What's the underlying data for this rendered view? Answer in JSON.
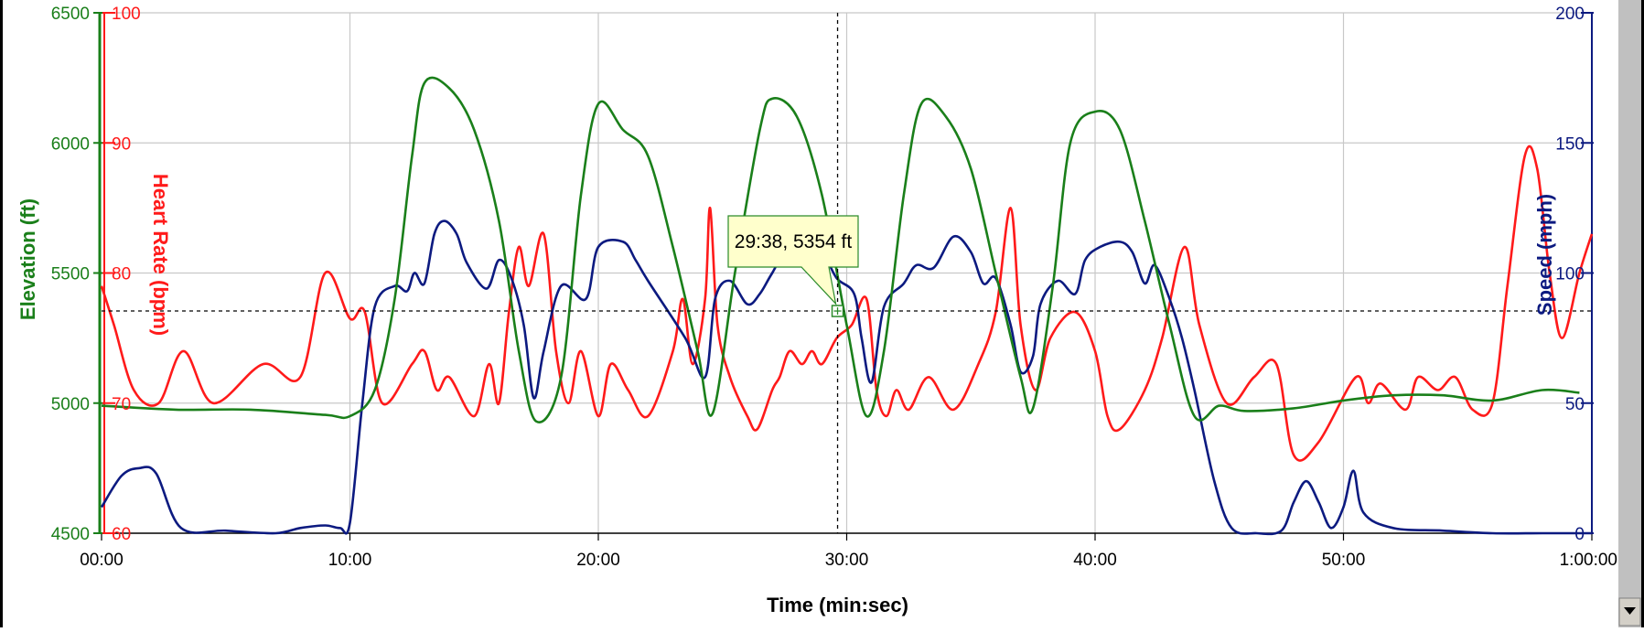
{
  "colors": {
    "elevation": "#1a7f1a",
    "heart_rate": "#ff1a1a",
    "speed": "#0c1a80",
    "grid": "#c8c8c8",
    "axis": "#000000",
    "tooltip_bg": "#ffffcc",
    "window_frame": "#000000",
    "scrollbar": "#c0c0c0"
  },
  "chart_data": {
    "type": "line",
    "xlabel": "Time (min:sec)",
    "x_ticks": [
      "00:00",
      "10:00",
      "20:00",
      "30:00",
      "40:00",
      "50:00",
      "1:00:00"
    ],
    "xlim_minutes": [
      0,
      60
    ],
    "grid": true,
    "y_axes": [
      {
        "id": "elevation",
        "label": "Elevation (ft)",
        "side": "left-outer",
        "range": [
          4500,
          6500
        ],
        "ticks": [
          "4500",
          "5000",
          "5500",
          "6000",
          "6500"
        ]
      },
      {
        "id": "heart_rate",
        "label": "Heart Rate (bpm)",
        "side": "left-inner",
        "range": [
          60,
          100
        ],
        "ticks": [
          "60",
          "70",
          "80",
          "90",
          "100"
        ]
      },
      {
        "id": "speed",
        "label": "Speed (mph)",
        "side": "right",
        "range": [
          0,
          200
        ],
        "ticks": [
          "0",
          "50",
          "100",
          "150",
          "200"
        ]
      }
    ],
    "series": [
      {
        "name": "Elevation (ft)",
        "axis": "elevation",
        "points": [
          [
            0,
            4990
          ],
          [
            3,
            4975
          ],
          [
            6,
            4975
          ],
          [
            9,
            4955
          ],
          [
            10,
            4950
          ],
          [
            11,
            5050
          ],
          [
            11.8,
            5400
          ],
          [
            12.5,
            5950
          ],
          [
            13,
            6230
          ],
          [
            14,
            6210
          ],
          [
            15,
            6050
          ],
          [
            16,
            5700
          ],
          [
            16.8,
            5200
          ],
          [
            17.5,
            4930
          ],
          [
            18.5,
            5100
          ],
          [
            19.3,
            5800
          ],
          [
            20,
            6150
          ],
          [
            21,
            6050
          ],
          [
            22,
            5950
          ],
          [
            23,
            5600
          ],
          [
            24,
            5200
          ],
          [
            24.6,
            4960
          ],
          [
            25.5,
            5500
          ],
          [
            26.5,
            6050
          ],
          [
            27,
            6170
          ],
          [
            28,
            6100
          ],
          [
            29,
            5800
          ],
          [
            30,
            5300
          ],
          [
            30.8,
            4950
          ],
          [
            31.5,
            5200
          ],
          [
            32.3,
            5800
          ],
          [
            33,
            6150
          ],
          [
            34,
            6100
          ],
          [
            35,
            5900
          ],
          [
            36,
            5500
          ],
          [
            37,
            5100
          ],
          [
            37.5,
            4980
          ],
          [
            38.3,
            5450
          ],
          [
            39,
            6000
          ],
          [
            40,
            6120
          ],
          [
            41,
            6050
          ],
          [
            42,
            5700
          ],
          [
            43,
            5300
          ],
          [
            44,
            4950
          ],
          [
            45,
            4990
          ],
          [
            46,
            4970
          ],
          [
            48,
            4980
          ],
          [
            50,
            5010
          ],
          [
            52,
            5030
          ],
          [
            54,
            5030
          ],
          [
            56,
            5010
          ],
          [
            58,
            5050
          ],
          [
            59.5,
            5040
          ]
        ]
      },
      {
        "name": "Heart Rate (bpm)",
        "axis": "heart_rate",
        "points": [
          [
            0,
            79
          ],
          [
            0.5,
            76
          ],
          [
            1.3,
            71
          ],
          [
            2.3,
            70
          ],
          [
            3.3,
            74
          ],
          [
            4.5,
            70
          ],
          [
            6.5,
            73
          ],
          [
            8,
            72
          ],
          [
            9,
            80
          ],
          [
            10,
            76.5
          ],
          [
            10.6,
            77
          ],
          [
            11.3,
            70
          ],
          [
            12.5,
            73
          ],
          [
            13,
            74
          ],
          [
            13.5,
            71
          ],
          [
            14,
            72
          ],
          [
            15,
            69
          ],
          [
            15.6,
            73
          ],
          [
            16,
            70
          ],
          [
            16.4,
            77
          ],
          [
            16.8,
            82
          ],
          [
            17.2,
            79
          ],
          [
            17.8,
            83
          ],
          [
            18.3,
            74
          ],
          [
            18.8,
            70
          ],
          [
            19.3,
            74
          ],
          [
            20,
            69
          ],
          [
            20.5,
            73
          ],
          [
            21.2,
            71
          ],
          [
            22,
            69
          ],
          [
            23,
            74
          ],
          [
            23.4,
            78
          ],
          [
            23.8,
            73
          ],
          [
            24.3,
            78
          ],
          [
            24.5,
            85
          ],
          [
            24.8,
            76
          ],
          [
            25.3,
            72
          ],
          [
            26,
            69
          ],
          [
            26.4,
            68
          ],
          [
            27,
            71
          ],
          [
            27.3,
            72
          ],
          [
            27.7,
            74
          ],
          [
            28.2,
            73
          ],
          [
            28.6,
            74
          ],
          [
            29,
            73
          ],
          [
            29.6,
            75
          ],
          [
            30.2,
            76
          ],
          [
            30.8,
            78
          ],
          [
            31.2,
            71
          ],
          [
            31.6,
            69
          ],
          [
            32,
            71
          ],
          [
            32.5,
            69.5
          ],
          [
            33.3,
            72
          ],
          [
            34.3,
            69.5
          ],
          [
            35.3,
            73
          ],
          [
            36,
            77
          ],
          [
            36.6,
            85
          ],
          [
            37,
            76
          ],
          [
            37.6,
            71
          ],
          [
            38.2,
            75
          ],
          [
            39.2,
            77
          ],
          [
            40,
            74
          ],
          [
            40.5,
            69
          ],
          [
            41,
            68
          ],
          [
            42,
            71
          ],
          [
            42.7,
            75
          ],
          [
            43.6,
            82
          ],
          [
            44.2,
            76
          ],
          [
            45.3,
            70
          ],
          [
            46.4,
            72
          ],
          [
            47.3,
            73
          ],
          [
            48,
            66
          ],
          [
            49,
            67
          ],
          [
            50.5,
            72
          ],
          [
            51,
            70
          ],
          [
            51.5,
            71.5
          ],
          [
            52.5,
            69.5
          ],
          [
            53,
            72
          ],
          [
            53.8,
            71
          ],
          [
            54.5,
            72
          ],
          [
            55.2,
            69.5
          ],
          [
            56,
            70
          ],
          [
            56.6,
            79
          ],
          [
            57.3,
            89
          ],
          [
            57.8,
            88
          ],
          [
            58.3,
            80
          ],
          [
            58.8,
            75
          ],
          [
            59.5,
            80
          ],
          [
            60,
            83
          ]
        ]
      },
      {
        "name": "Speed (mph)",
        "axis": "speed",
        "points": [
          [
            0,
            10
          ],
          [
            0.8,
            22
          ],
          [
            1.5,
            25
          ],
          [
            2.2,
            23
          ],
          [
            3.2,
            2
          ],
          [
            5,
            1
          ],
          [
            7,
            0
          ],
          [
            8,
            2
          ],
          [
            9,
            3
          ],
          [
            9.6,
            2
          ],
          [
            10,
            4
          ],
          [
            10.5,
            50
          ],
          [
            11,
            87
          ],
          [
            11.8,
            95
          ],
          [
            12.3,
            93
          ],
          [
            12.6,
            100
          ],
          [
            13,
            96
          ],
          [
            13.4,
            115
          ],
          [
            13.8,
            120
          ],
          [
            14.3,
            115
          ],
          [
            14.7,
            104
          ],
          [
            15.5,
            94
          ],
          [
            16,
            105
          ],
          [
            16.5,
            98
          ],
          [
            17,
            80
          ],
          [
            17.4,
            52
          ],
          [
            17.8,
            70
          ],
          [
            18.5,
            95
          ],
          [
            19.5,
            90
          ],
          [
            20,
            110
          ],
          [
            21,
            112
          ],
          [
            21.5,
            105
          ],
          [
            22,
            97
          ],
          [
            23.5,
            75
          ],
          [
            24.3,
            60
          ],
          [
            24.7,
            90
          ],
          [
            25.3,
            97
          ],
          [
            26,
            88
          ],
          [
            26.5,
            92
          ],
          [
            27,
            100
          ],
          [
            28,
            115
          ],
          [
            29,
            108
          ],
          [
            29.6,
            98
          ],
          [
            30.3,
            92
          ],
          [
            30.6,
            75
          ],
          [
            31,
            58
          ],
          [
            31.5,
            87
          ],
          [
            32.3,
            96
          ],
          [
            32.8,
            103
          ],
          [
            33.5,
            102
          ],
          [
            34.3,
            114
          ],
          [
            35,
            108
          ],
          [
            35.5,
            96
          ],
          [
            36,
            98
          ],
          [
            36.6,
            80
          ],
          [
            37,
            62
          ],
          [
            37.5,
            68
          ],
          [
            37.8,
            88
          ],
          [
            38.5,
            97
          ],
          [
            39.2,
            92
          ],
          [
            39.6,
            105
          ],
          [
            40.2,
            110
          ],
          [
            41,
            112
          ],
          [
            41.5,
            108
          ],
          [
            42,
            96
          ],
          [
            42.4,
            103
          ],
          [
            43,
            90
          ],
          [
            43.5,
            75
          ],
          [
            44,
            55
          ],
          [
            44.8,
            20
          ],
          [
            45.5,
            2
          ],
          [
            46.5,
            0
          ],
          [
            47.5,
            1
          ],
          [
            48,
            12
          ],
          [
            48.5,
            20
          ],
          [
            49,
            12
          ],
          [
            49.5,
            2
          ],
          [
            50,
            10
          ],
          [
            50.4,
            24
          ],
          [
            50.8,
            8
          ],
          [
            52,
            2
          ],
          [
            54,
            1
          ],
          [
            56,
            0
          ],
          [
            58,
            0
          ],
          [
            60,
            0
          ]
        ]
      }
    ],
    "crosshair": {
      "x_minutes": 29.633,
      "elevation_ft": 5354
    },
    "tooltip": "29:38, 5354 ft"
  }
}
